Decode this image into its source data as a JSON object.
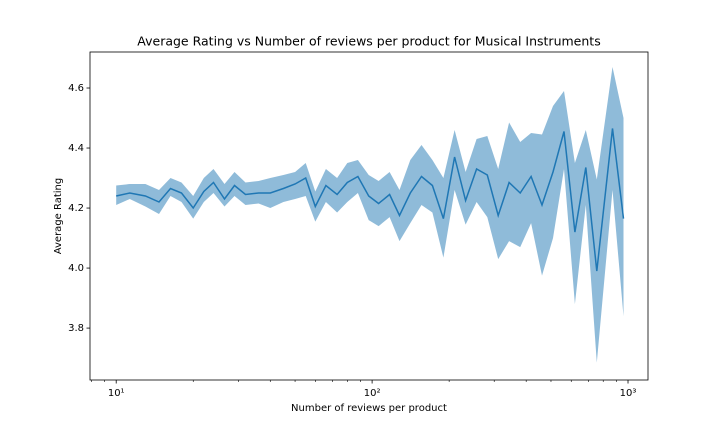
{
  "chart_data": {
    "type": "line_band",
    "title": "Average Rating vs Number of reviews per product for Musical Instruments",
    "x_label": "Number of reviews per product",
    "y_label": "Average Rating",
    "xscale": "log",
    "color": "#1f77b4",
    "x": [
      10,
      11.3,
      13,
      14.7,
      16.3,
      18,
      20,
      22,
      24,
      26.5,
      29,
      32,
      36,
      40,
      45,
      50,
      55,
      60,
      66,
      73,
      80,
      88,
      97,
      106,
      117,
      128,
      141,
      156,
      172,
      190,
      210,
      232,
      256,
      282,
      311,
      343,
      379,
      418,
      461,
      509,
      562,
      620,
      684,
      755,
      870,
      960
    ],
    "values": [
      4.24,
      4.25,
      4.24,
      4.22,
      4.265,
      4.25,
      4.2,
      4.255,
      4.285,
      4.23,
      4.275,
      4.245,
      4.25,
      4.25,
      4.265,
      4.28,
      4.3,
      4.205,
      4.275,
      4.245,
      4.285,
      4.305,
      4.24,
      4.215,
      4.245,
      4.175,
      4.25,
      4.305,
      4.275,
      4.165,
      4.37,
      4.225,
      4.33,
      4.31,
      4.175,
      4.285,
      4.25,
      4.305,
      4.21,
      4.32,
      4.455,
      4.12,
      4.335,
      3.99,
      4.465,
      4.165
    ],
    "lower": [
      4.21,
      4.23,
      4.205,
      4.18,
      4.24,
      4.22,
      4.165,
      4.22,
      4.25,
      4.205,
      4.24,
      4.21,
      4.215,
      4.2,
      4.22,
      4.23,
      4.24,
      4.155,
      4.22,
      4.185,
      4.22,
      4.25,
      4.16,
      4.14,
      4.17,
      4.09,
      4.15,
      4.21,
      4.185,
      4.035,
      4.26,
      4.145,
      4.22,
      4.17,
      4.03,
      4.09,
      4.07,
      4.15,
      3.975,
      4.1,
      4.33,
      3.88,
      4.21,
      3.685,
      4.26,
      3.84
    ],
    "upper": [
      4.275,
      4.28,
      4.28,
      4.26,
      4.3,
      4.285,
      4.24,
      4.3,
      4.33,
      4.28,
      4.32,
      4.285,
      4.29,
      4.3,
      4.31,
      4.32,
      4.35,
      4.255,
      4.33,
      4.3,
      4.35,
      4.36,
      4.31,
      4.29,
      4.32,
      4.26,
      4.36,
      4.41,
      4.36,
      4.3,
      4.46,
      4.32,
      4.43,
      4.44,
      4.33,
      4.485,
      4.42,
      4.45,
      4.445,
      4.54,
      4.59,
      4.35,
      4.46,
      4.295,
      4.67,
      4.5
    ],
    "xlim": [
      7.9,
      1197
    ],
    "xticks": [
      {
        "value": 10,
        "label": "10¹"
      },
      {
        "value": 100,
        "label": "10²"
      },
      {
        "value": 1000,
        "label": "10³"
      }
    ],
    "xminorticks": [
      8,
      9,
      20,
      30,
      40,
      50,
      60,
      70,
      80,
      90,
      200,
      300,
      400,
      500,
      600,
      700,
      800,
      900
    ],
    "ylim": [
      3.627,
      4.72
    ],
    "yticks": [
      {
        "value": 3.8,
        "label": "3.8"
      },
      {
        "value": 4,
        "label": "4.0"
      },
      {
        "value": 4.2,
        "label": "4.2"
      },
      {
        "value": 4.4,
        "label": "4.4"
      },
      {
        "value": 4.6,
        "label": "4.6"
      }
    ]
  }
}
